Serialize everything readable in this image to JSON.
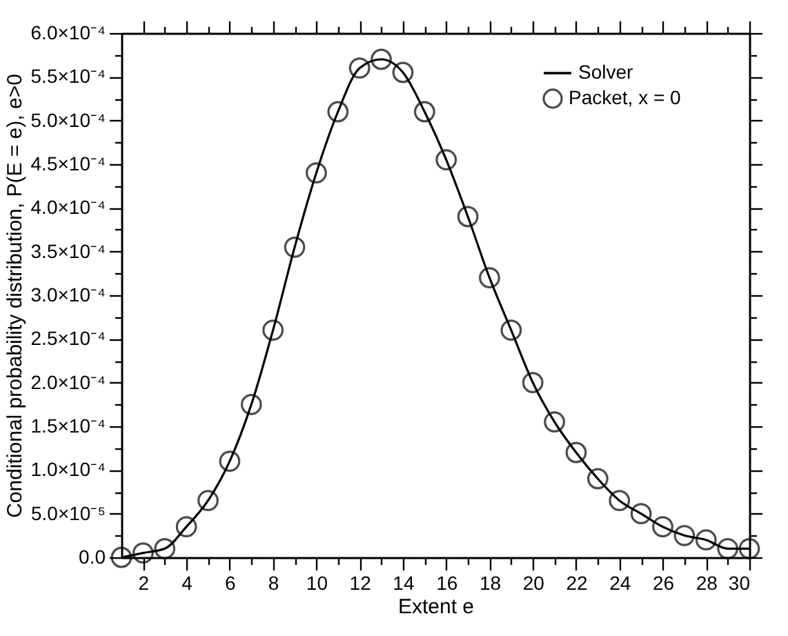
{
  "chart_data": {
    "type": "line",
    "xlabel": "Extent e",
    "ylabel": "Conditional probability distribution, P(E = e), e>0",
    "x": [
      1,
      2,
      3,
      4,
      5,
      6,
      7,
      8,
      9,
      10,
      11,
      12,
      13,
      14,
      15,
      16,
      17,
      18,
      19,
      20,
      21,
      22,
      23,
      24,
      25,
      26,
      27,
      28,
      29,
      30
    ],
    "series": [
      {
        "name": "Solver",
        "color": "#000000",
        "marker": "none",
        "line_style": "solid",
        "values": [
          0.0,
          5e-06,
          1e-05,
          3.5e-05,
          6.5e-05,
          0.00011,
          0.000175,
          0.00026,
          0.000355,
          0.00044,
          0.00051,
          0.00056,
          0.00057,
          0.000555,
          0.00051,
          0.000455,
          0.00039,
          0.00032,
          0.00026,
          0.0002,
          0.000155,
          0.00012,
          9e-05,
          6.5e-05,
          5e-05,
          3.5e-05,
          2.5e-05,
          2e-05,
          1e-05,
          1e-05
        ]
      },
      {
        "name": "Packet, x = 0",
        "type": "scatter",
        "color": "#000000",
        "marker": "circle",
        "values": [
          0.0,
          5e-06,
          1e-05,
          3.5e-05,
          6.5e-05,
          0.00011,
          0.000175,
          0.00026,
          0.000355,
          0.00044,
          0.00051,
          0.00056,
          0.00057,
          0.000555,
          0.00051,
          0.000455,
          0.00039,
          0.00032,
          0.00026,
          0.0002,
          0.000155,
          0.00012,
          9e-05,
          6.5e-05,
          5e-05,
          3.5e-05,
          2.5e-05,
          2e-05,
          1e-05,
          1e-05
        ]
      }
    ],
    "xlim": [
      1,
      30
    ],
    "xticks": [
      2,
      {
        "value": 3,
        "label": null
      },
      4,
      {
        "value": 5,
        "label": null
      },
      6,
      {
        "value": 7,
        "label": null
      },
      8,
      {
        "value": 9,
        "label": null
      },
      10,
      {
        "value": 11,
        "label": null
      },
      12,
      {
        "value": 13,
        "label": null
      },
      14,
      {
        "value": 15,
        "label": null
      },
      16,
      {
        "value": 17,
        "label": null
      },
      18,
      {
        "value": 19,
        "label": null
      },
      20,
      {
        "value": 21,
        "label": null
      },
      22,
      {
        "value": 23,
        "label": null
      },
      24,
      {
        "value": 25,
        "label": null
      },
      26,
      {
        "value": 27,
        "label": null
      },
      28,
      {
        "value": 29,
        "label": null
      },
      30
    ],
    "ylim": [
      0,
      0.0006
    ],
    "yticks": [
      {
        "value": 0,
        "label": "0.0"
      },
      {
        "value": 2.5e-05,
        "label": null
      },
      {
        "value": 5e-05,
        "label": "5.0×10⁻⁵"
      },
      {
        "value": 7.5e-05,
        "label": null
      },
      {
        "value": 0.0001,
        "label": "1.0×10⁻⁴"
      },
      {
        "value": 0.000125,
        "label": null
      },
      {
        "value": 0.00015,
        "label": "1.5×10⁻⁴"
      },
      {
        "value": 0.000175,
        "label": null
      },
      {
        "value": 0.0002,
        "label": "2.0×10⁻⁴"
      },
      {
        "value": 0.000225,
        "label": null
      },
      {
        "value": 0.00025,
        "label": "2.5×10⁻⁴"
      },
      {
        "value": 0.000275,
        "label": null
      },
      {
        "value": 0.0003,
        "label": "3.0×10⁻⁴"
      },
      {
        "value": 0.000325,
        "label": null
      },
      {
        "value": 0.00035,
        "label": "3.5×10⁻⁴"
      },
      {
        "value": 0.000375,
        "label": null
      },
      {
        "value": 0.0004,
        "label": "4.0×10⁻⁴"
      },
      {
        "value": 0.000425,
        "label": null
      },
      {
        "value": 0.00045,
        "label": "4.5×10⁻⁴"
      },
      {
        "value": 0.000475,
        "label": null
      },
      {
        "value": 0.0005,
        "label": "5.0×10⁻⁴"
      },
      {
        "value": 0.000525,
        "label": null
      },
      {
        "value": 0.00055,
        "label": "5.5×10⁻⁴"
      },
      {
        "value": 0.000575,
        "label": null
      },
      {
        "value": 0.0006,
        "label": "6.0×10⁻⁴"
      }
    ],
    "grid": false,
    "legend": "top right"
  }
}
